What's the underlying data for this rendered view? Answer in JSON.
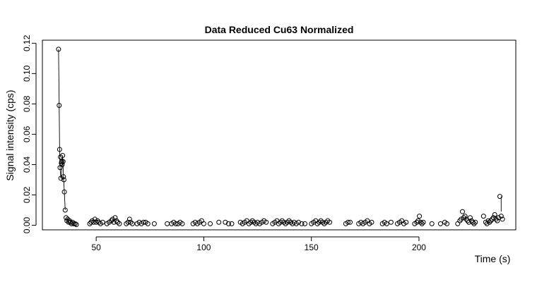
{
  "chart_data": {
    "type": "scatter",
    "title": "Data Reduced Cu63 Normalized",
    "xlabel": "Time (s)",
    "ylabel": "Signal intensity (cps)",
    "xlim": [
      25,
      245
    ],
    "ylim": [
      -0.003,
      0.122
    ],
    "xticks": [
      50,
      100,
      150,
      200
    ],
    "yticks": [
      0.0,
      0.02,
      0.04,
      0.06,
      0.08,
      0.1,
      0.12
    ],
    "ytick_labels": [
      "0.00",
      "0.02",
      "0.04",
      "0.06",
      "0.08",
      "0.10",
      "0.12"
    ],
    "grid": false,
    "legend": "none",
    "series": [
      {
        "x": [
          32.5,
          32.8,
          33.0,
          33.2,
          33.4,
          33.6,
          33.8,
          34.0,
          34.2,
          34.4,
          34.6,
          34.8,
          35.0,
          35.2,
          35.6,
          36.0,
          36.4,
          36.8,
          37.2,
          37.6,
          38.0,
          38.5,
          39.0,
          39.6,
          40.2,
          40.8,
          47.0,
          47.6,
          48.2,
          48.8,
          49.4,
          50.0,
          50.6,
          51.2,
          52.0,
          53.0,
          55.0,
          56.0,
          57.0,
          57.6,
          58.2,
          58.8,
          59.4,
          60.0,
          60.8,
          64.0,
          64.8,
          65.5,
          66.0,
          66.8,
          69.0,
          70.0,
          71.0,
          72.0,
          73.0,
          74.0,
          77.0,
          83.0,
          85.0,
          86.0,
          87.0,
          88.0,
          89.0,
          90.0,
          95.0,
          96.0,
          97.0,
          98.0,
          99.0,
          100.0,
          103.0,
          107.0,
          110.0,
          111.5,
          113.0,
          117.0,
          118.0,
          119.0,
          120.0,
          121.0,
          121.8,
          122.6,
          123.4,
          124.2,
          125.0,
          126.0,
          127.0,
          128.0,
          129.0,
          132.0,
          133.0,
          134.0,
          134.8,
          135.6,
          136.4,
          137.2,
          138.0,
          138.8,
          139.6,
          140.4,
          141.2,
          142.0,
          143.0,
          144.0,
          145.5,
          147.0,
          150.0,
          151.0,
          152.0,
          152.8,
          153.6,
          154.4,
          155.2,
          156.0,
          156.8,
          157.6,
          158.5,
          166.0,
          167.0,
          168.0,
          172.0,
          173.0,
          174.0,
          175.0,
          176.0,
          177.0,
          178.0,
          183.0,
          184.0,
          185.0,
          187.0,
          190.0,
          191.0,
          192.0,
          193.0,
          194.0,
          198.0,
          199.0,
          199.6,
          200.2,
          200.8,
          201.4,
          202.0,
          206.0,
          210.0,
          212.0,
          213.0,
          218.0,
          219.0,
          219.6,
          220.2,
          220.8,
          221.4,
          222.0,
          222.6,
          223.2,
          223.8,
          224.4,
          225.0,
          225.6,
          226.2,
          230.0,
          231.0,
          231.6,
          232.2,
          232.8,
          233.4,
          234.0,
          234.6,
          235.2,
          235.8,
          236.4,
          237.0,
          237.6,
          238.2,
          238.8
        ],
        "y": [
          0.116,
          0.079,
          0.05,
          0.038,
          0.045,
          0.031,
          0.041,
          0.042,
          0.04,
          0.046,
          0.042,
          0.032,
          0.03,
          0.022,
          0.01,
          0.005,
          0.003,
          0.004,
          0.002,
          0.003,
          0.002,
          0.001,
          0.002,
          0.001,
          0.001,
          0.0005,
          0.001,
          0.002,
          0.003,
          0.002,
          0.004,
          0.002,
          0.003,
          0.002,
          0.001,
          0.002,
          0.001,
          0.002,
          0.003,
          0.004,
          0.002,
          0.005,
          0.003,
          0.002,
          0.001,
          0.001,
          0.002,
          0.004,
          0.002,
          0.001,
          0.001,
          0.002,
          0.001,
          0.002,
          0.002,
          0.001,
          0.001,
          0.001,
          0.001,
          0.002,
          0.001,
          0.001,
          0.002,
          0.001,
          0.001,
          0.002,
          0.001,
          0.002,
          0.003,
          0.001,
          0.001,
          0.002,
          0.002,
          0.001,
          0.001,
          0.002,
          0.001,
          0.002,
          0.003,
          0.001,
          0.002,
          0.003,
          0.002,
          0.001,
          0.002,
          0.001,
          0.002,
          0.003,
          0.002,
          0.001,
          0.002,
          0.003,
          0.001,
          0.002,
          0.003,
          0.002,
          0.001,
          0.002,
          0.003,
          0.002,
          0.001,
          0.002,
          0.001,
          0.002,
          0.001,
          0.001,
          0.001,
          0.002,
          0.003,
          0.001,
          0.002,
          0.003,
          0.002,
          0.001,
          0.002,
          0.003,
          0.002,
          0.001,
          0.002,
          0.002,
          0.001,
          0.002,
          0.001,
          0.002,
          0.003,
          0.001,
          0.002,
          0.001,
          0.002,
          0.001,
          0.002,
          0.001,
          0.002,
          0.003,
          0.001,
          0.002,
          0.001,
          0.002,
          0.003,
          0.006,
          0.002,
          0.001,
          0.002,
          0.001,
          0.001,
          0.002,
          0.001,
          0.001,
          0.003,
          0.004,
          0.009,
          0.005,
          0.006,
          0.004,
          0.003,
          0.002,
          0.005,
          0.003,
          0.002,
          0.001,
          0.002,
          0.006,
          0.002,
          0.001,
          0.003,
          0.002,
          0.003,
          0.004,
          0.005,
          0.007,
          0.004,
          0.003,
          0.005,
          0.019,
          0.006,
          0.004
        ]
      }
    ],
    "connecting_lines": [
      {
        "x": [
          32.5,
          32.8,
          33.0,
          33.2,
          33.6,
          34.2,
          34.4,
          34.8,
          35.2,
          35.6
        ],
        "y": [
          0.116,
          0.079,
          0.05,
          0.038,
          0.031,
          0.04,
          0.046,
          0.032,
          0.022,
          0.01
        ]
      },
      {
        "x": [
          238.2,
          238.2
        ],
        "y": [
          0.019,
          0.009
        ]
      }
    ]
  }
}
